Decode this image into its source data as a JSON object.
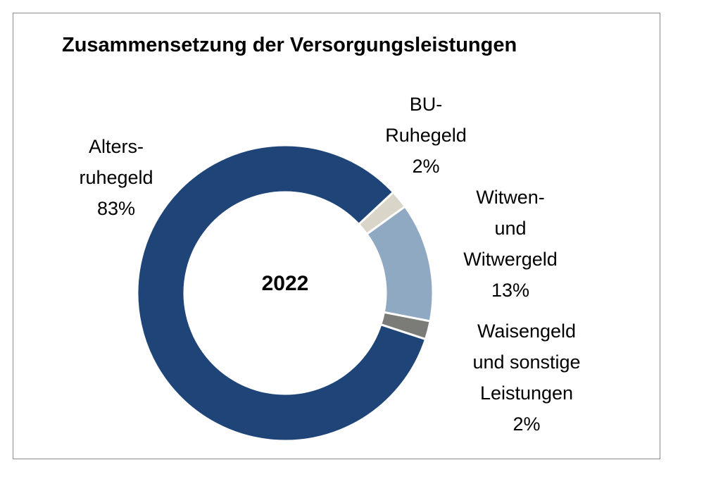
{
  "chart_data": {
    "type": "pie",
    "variant": "donut",
    "title": "Zusammensetzung der Versorgungsleistungen",
    "center_label": "2022",
    "unit": "%",
    "slices": [
      {
        "name": "BU-Ruhegeld",
        "label_lines": [
          "BU-",
          "Ruhegeld"
        ],
        "value_label": "2%",
        "value": 2,
        "color": "#d9d5c8"
      },
      {
        "name": "Witwen- und Witwergeld",
        "label_lines": [
          "Witwen-",
          "und",
          "Witwergeld"
        ],
        "value_label": "13%",
        "value": 13,
        "color": "#8fa9c3"
      },
      {
        "name": "Waisengeld und sonstige Leistungen",
        "label_lines": [
          "Waisengeld",
          "und sonstige",
          "Leistungen"
        ],
        "value_label": "2%",
        "value": 2,
        "color": "#7b7c78"
      },
      {
        "name": "Altersruhegeld",
        "label_lines": [
          "Alters-",
          "ruhegeld"
        ],
        "value_label": "83%",
        "value": 83,
        "color": "#1f4478"
      }
    ],
    "start_angle_deg": 47
  }
}
